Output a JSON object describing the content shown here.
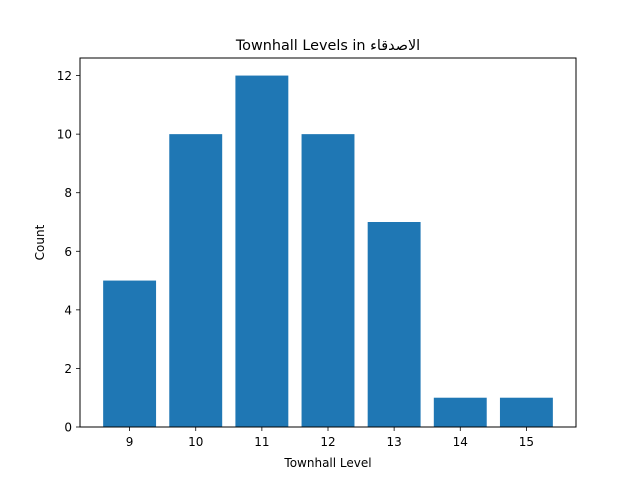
{
  "chart_data": {
    "type": "bar",
    "title": "Townhall Levels in الاصدقاء",
    "xlabel": "Townhall Level",
    "ylabel": "Count",
    "categories": [
      "9",
      "10",
      "11",
      "12",
      "13",
      "14",
      "15"
    ],
    "values": [
      5,
      10,
      12,
      10,
      7,
      1,
      1
    ],
    "yticks": [
      "0",
      "2",
      "4",
      "6",
      "8",
      "10",
      "12"
    ],
    "ylim": [
      0,
      12.6
    ],
    "bar_color": "#1f77b4",
    "grid": false,
    "legend": "none"
  }
}
